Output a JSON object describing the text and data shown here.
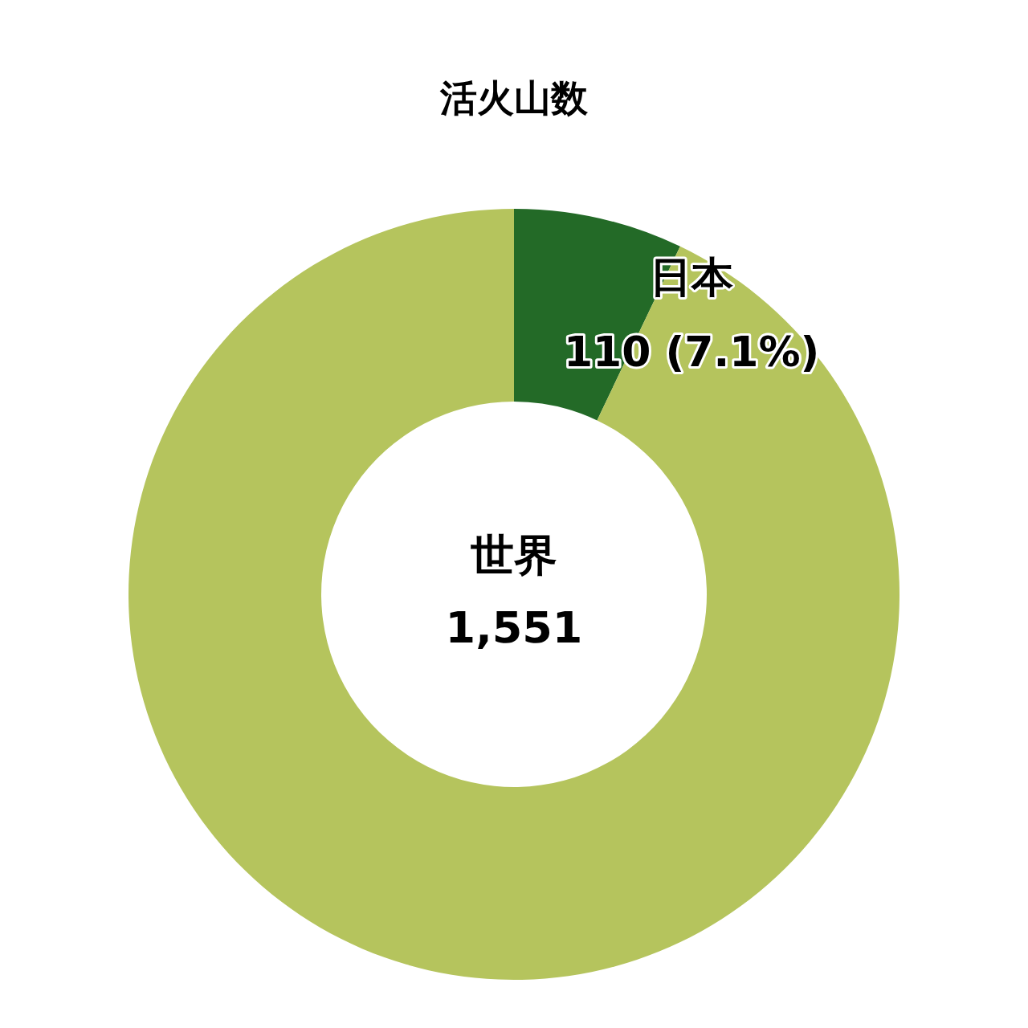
{
  "chart_data": {
    "type": "donut",
    "title": "活火山数",
    "categories": [
      "日本",
      null
    ],
    "values": [
      110,
      1441
    ],
    "colors": [
      "#236a27",
      "#b5c45d"
    ],
    "value_labels": [
      "110 (7.1%)",
      null
    ],
    "annotations": [
      "世界",
      "1,551"
    ]
  }
}
